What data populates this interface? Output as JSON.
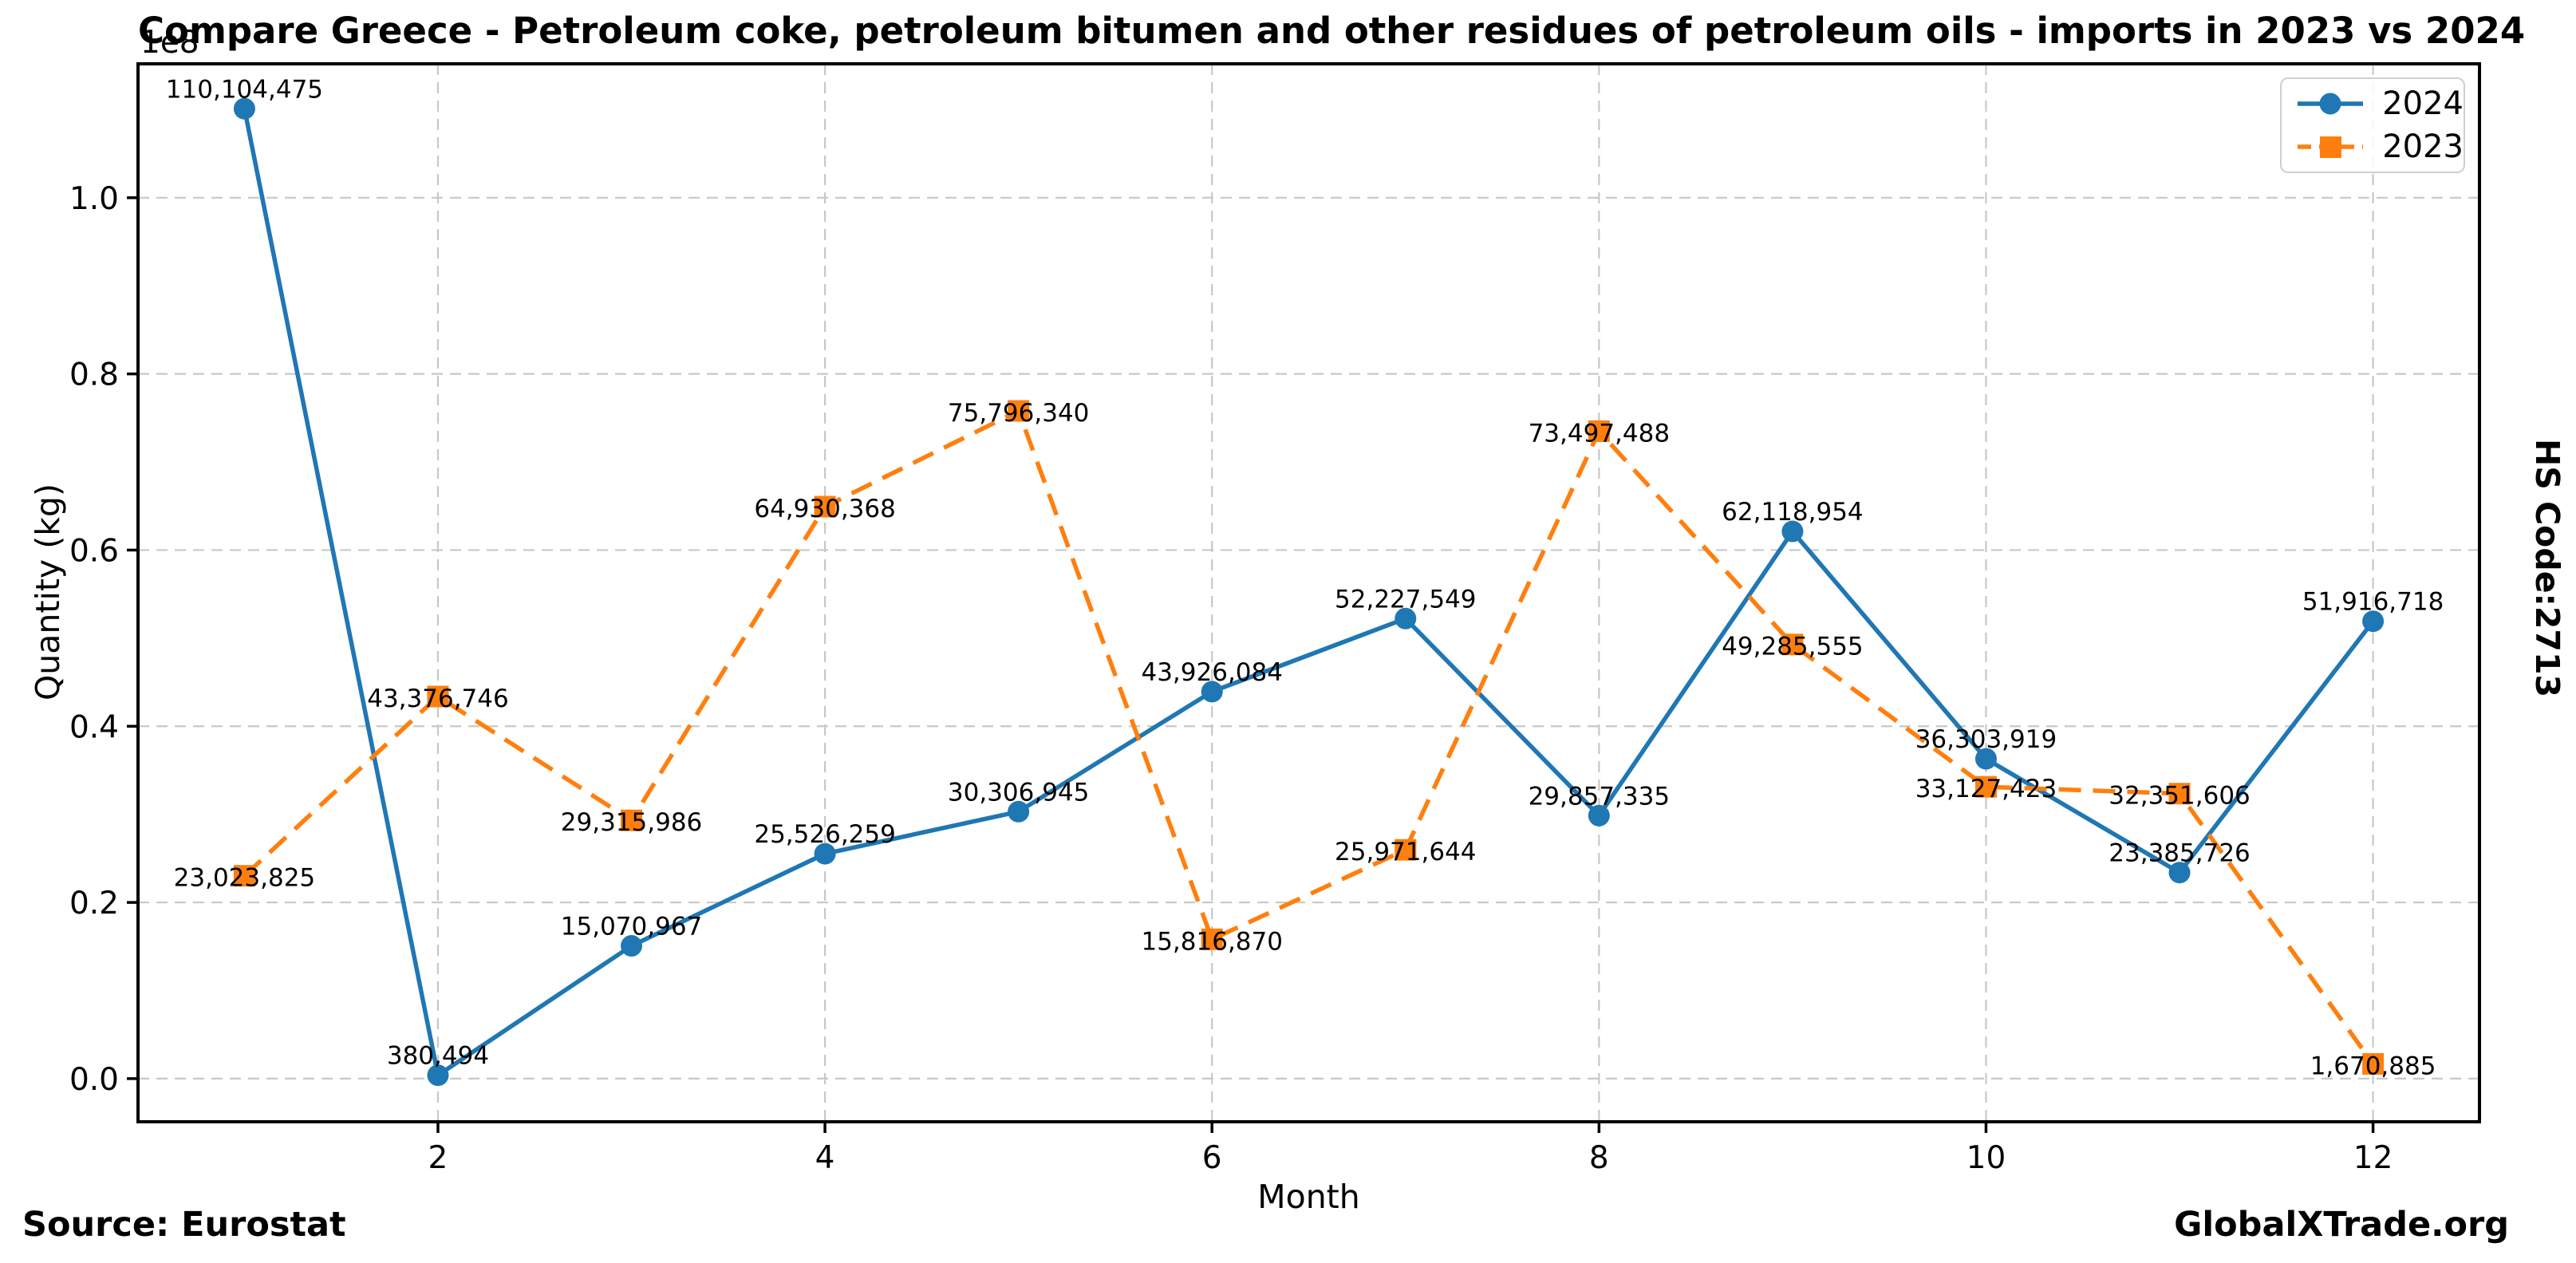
{
  "chart_data": {
    "type": "line",
    "title": "Compare Greece - Petroleum coke, petroleum bitumen and other residues of petroleum oils - imports in 2023 vs 2024",
    "xlabel": "Month",
    "ylabel": "Quantity (kg)",
    "y_scale_label": "1e8",
    "x": [
      1,
      2,
      3,
      4,
      5,
      6,
      7,
      8,
      9,
      10,
      11,
      12
    ],
    "series": [
      {
        "name": "2024",
        "color": "#1f77b4",
        "line_style": "solid",
        "marker": "circle",
        "values": [
          110104475,
          380494,
          15070967,
          25526259,
          30306945,
          43926084,
          52227549,
          29857335,
          62118954,
          36303919,
          23385726,
          51916718
        ]
      },
      {
        "name": "2023",
        "color": "#ff7f0e",
        "line_style": "dashed",
        "marker": "square",
        "values": [
          23023825,
          43376746,
          29315986,
          64930368,
          75796340,
          15816870,
          25971644,
          73497488,
          49285555,
          33127423,
          32351606,
          1670885
        ]
      }
    ],
    "xticks": [
      2,
      4,
      6,
      8,
      10,
      12
    ],
    "yticks": [
      0,
      20000000,
      40000000,
      60000000,
      80000000,
      100000000
    ],
    "ytick_labels": [
      "0.0",
      "0.2",
      "0.4",
      "0.6",
      "0.8",
      "1.0"
    ],
    "xlim": [
      0.45,
      12.55
    ],
    "ylim": [
      -4900000,
      115200000
    ],
    "grid": true,
    "legend_position": "upper right",
    "point_labels": "comma-formatted values shown at every data point",
    "colors": {
      "grid": "#c8c8c8",
      "spine": "#000000",
      "text": "#000000"
    }
  },
  "footer": {
    "source": "Source: Eurostat",
    "watermark": "GlobalXTrade.org"
  },
  "side_label": "HS Code:2713"
}
